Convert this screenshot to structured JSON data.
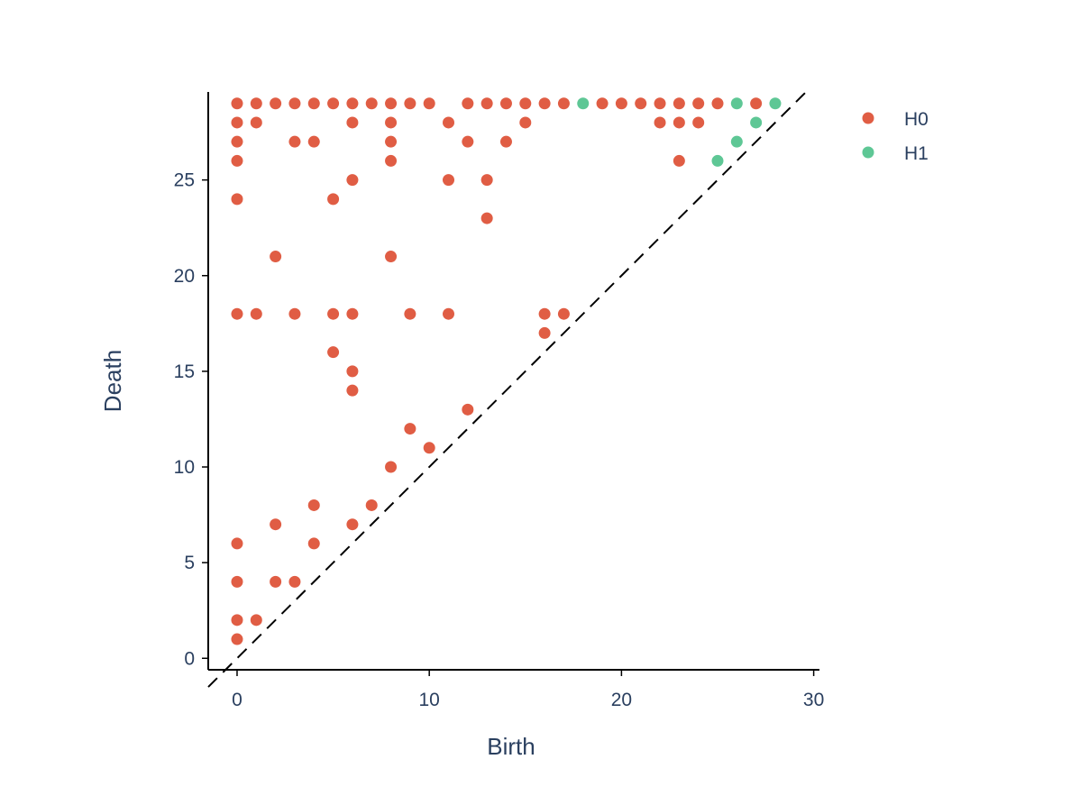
{
  "chart_data": {
    "type": "scatter",
    "xlabel": "Birth",
    "ylabel": "Death",
    "xlim": [
      -1.5,
      30.3
    ],
    "ylim": [
      -0.6,
      29.6
    ],
    "x_ticks": [
      0,
      10,
      20,
      30
    ],
    "y_ticks": [
      0,
      5,
      10,
      15,
      20,
      25
    ],
    "x_tick_labels": [
      "0",
      "10",
      "20",
      "30"
    ],
    "y_tick_labels": [
      "0",
      "5",
      "10",
      "15",
      "20",
      "25"
    ],
    "grid": false,
    "legend_position": "top-right",
    "diagonal": {
      "style": "dashed",
      "color": "#000000",
      "from": [
        -1.5,
        -1.5
      ],
      "to": [
        29.6,
        29.6
      ]
    },
    "series": [
      {
        "name": "H0",
        "color": "#e05d44",
        "points": [
          [
            0,
            29
          ],
          [
            1,
            29
          ],
          [
            2,
            29
          ],
          [
            3,
            29
          ],
          [
            4,
            29
          ],
          [
            5,
            29
          ],
          [
            6,
            29
          ],
          [
            7,
            29
          ],
          [
            8,
            29
          ],
          [
            9,
            29
          ],
          [
            10,
            29
          ],
          [
            12,
            29
          ],
          [
            13,
            29
          ],
          [
            14,
            29
          ],
          [
            15,
            29
          ],
          [
            16,
            29
          ],
          [
            17,
            29
          ],
          [
            19,
            29
          ],
          [
            20,
            29
          ],
          [
            21,
            29
          ],
          [
            22,
            29
          ],
          [
            23,
            29
          ],
          [
            24,
            29
          ],
          [
            25,
            29
          ],
          [
            27,
            29
          ],
          [
            0,
            28
          ],
          [
            1,
            28
          ],
          [
            6,
            28
          ],
          [
            8,
            28
          ],
          [
            11,
            28
          ],
          [
            15,
            28
          ],
          [
            22,
            28
          ],
          [
            23,
            28
          ],
          [
            24,
            28
          ],
          [
            0,
            27
          ],
          [
            3,
            27
          ],
          [
            4,
            27
          ],
          [
            8,
            27
          ],
          [
            12,
            27
          ],
          [
            14,
            27
          ],
          [
            0,
            26
          ],
          [
            8,
            26
          ],
          [
            23,
            26
          ],
          [
            6,
            25
          ],
          [
            11,
            25
          ],
          [
            13,
            25
          ],
          [
            0,
            24
          ],
          [
            5,
            24
          ],
          [
            13,
            23
          ],
          [
            2,
            21
          ],
          [
            8,
            21
          ],
          [
            0,
            18
          ],
          [
            1,
            18
          ],
          [
            3,
            18
          ],
          [
            5,
            18
          ],
          [
            6,
            18
          ],
          [
            9,
            18
          ],
          [
            11,
            18
          ],
          [
            16,
            18
          ],
          [
            17,
            18
          ],
          [
            16,
            17
          ],
          [
            5,
            16
          ],
          [
            6,
            15
          ],
          [
            6,
            14
          ],
          [
            12,
            13
          ],
          [
            9,
            12
          ],
          [
            10,
            11
          ],
          [
            8,
            10
          ],
          [
            4,
            8
          ],
          [
            7,
            8
          ],
          [
            2,
            7
          ],
          [
            6,
            7
          ],
          [
            0,
            6
          ],
          [
            4,
            6
          ],
          [
            0,
            4
          ],
          [
            2,
            4
          ],
          [
            3,
            4
          ],
          [
            0,
            2
          ],
          [
            1,
            2
          ],
          [
            0,
            1
          ]
        ]
      },
      {
        "name": "H1",
        "color": "#5ec795",
        "points": [
          [
            18,
            29
          ],
          [
            26,
            29
          ],
          [
            28,
            29
          ],
          [
            27,
            28
          ],
          [
            26,
            27
          ],
          [
            25,
            26
          ]
        ]
      }
    ]
  }
}
